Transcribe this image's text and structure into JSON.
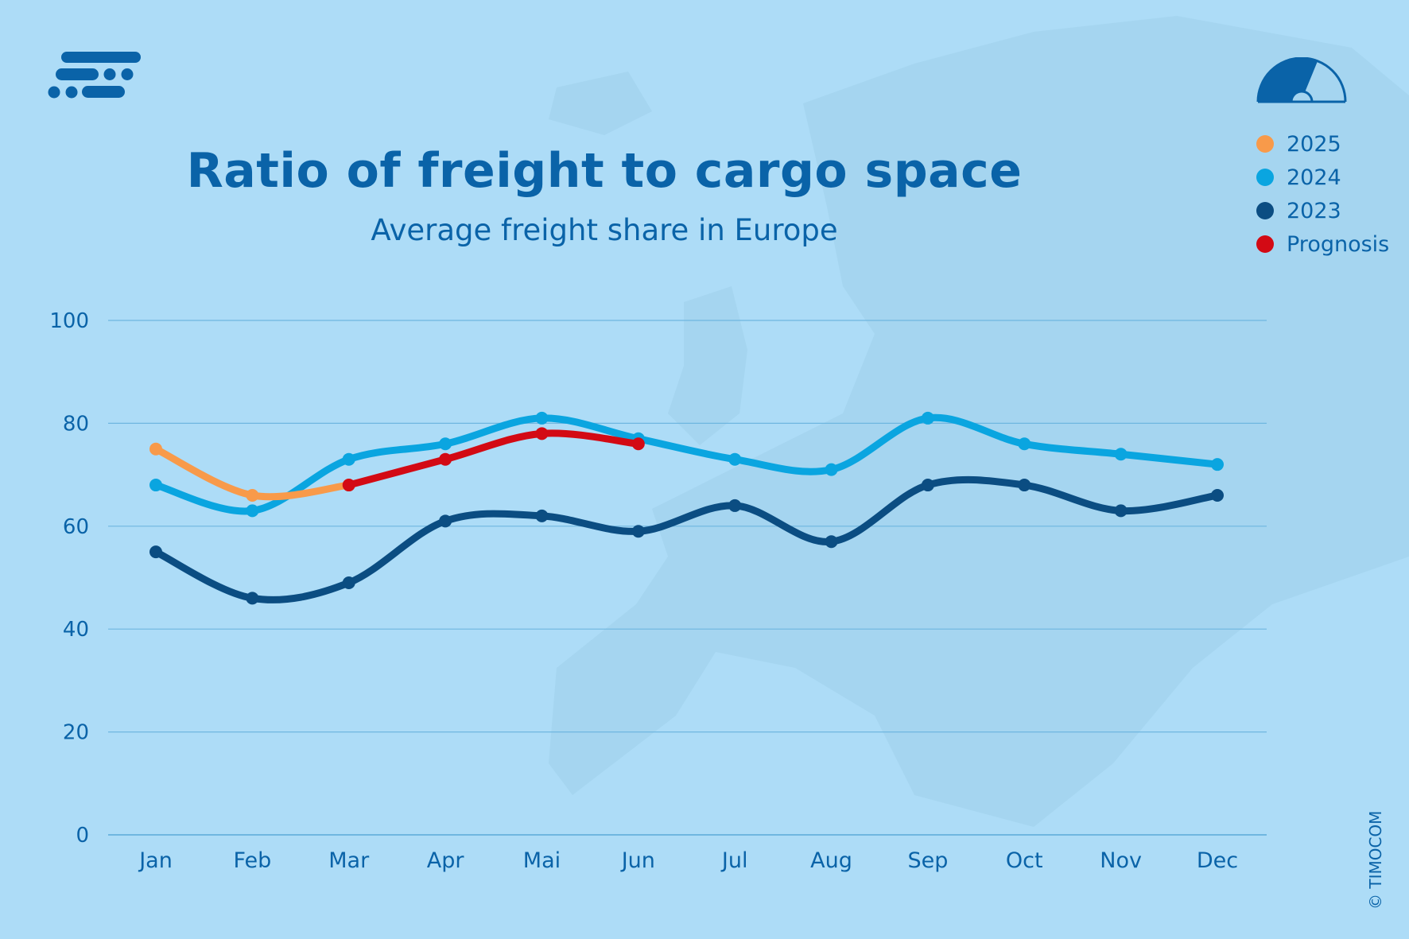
{
  "chart_data": {
    "type": "line",
    "title": "Ratio of freight to cargo space",
    "subtitle": "Average freight share in Europe",
    "xlabel": "",
    "ylabel": "",
    "categories": [
      "Jan",
      "Feb",
      "Mar",
      "Apr",
      "Mai",
      "Jun",
      "Jul",
      "Aug",
      "Sep",
      "Oct",
      "Nov",
      "Dec"
    ],
    "ylim": [
      0,
      100
    ],
    "yticks": [
      0,
      20,
      40,
      60,
      80,
      100
    ],
    "grid": true,
    "legend_position": "top-right",
    "series": [
      {
        "name": "2023",
        "color": "#0b4d82",
        "values": [
          55,
          46,
          49,
          61,
          62,
          59,
          64,
          57,
          68,
          68,
          63,
          66
        ]
      },
      {
        "name": "2024",
        "color": "#0aa5e0",
        "values": [
          68,
          63,
          73,
          76,
          81,
          77,
          73,
          71,
          81,
          76,
          74,
          72
        ]
      },
      {
        "name": "2025",
        "color": "#f89a4a",
        "values": [
          75,
          66,
          68,
          null,
          null,
          null,
          null,
          null,
          null,
          null,
          null,
          null
        ]
      },
      {
        "name": "Prognosis",
        "color": "#d30a14",
        "values": [
          null,
          null,
          68,
          73,
          78,
          76,
          null,
          null,
          null,
          null,
          null,
          null
        ]
      }
    ],
    "legend_order": [
      "2025",
      "2024",
      "2023",
      "Prognosis"
    ]
  },
  "copyright": "© TIMOCOM",
  "icons": {
    "logo": "timocom-logo",
    "gauge": "gauge-icon"
  },
  "colors": {
    "background": "#addcf7",
    "text": "#0a63a8",
    "grid": "#6fb6e0"
  }
}
